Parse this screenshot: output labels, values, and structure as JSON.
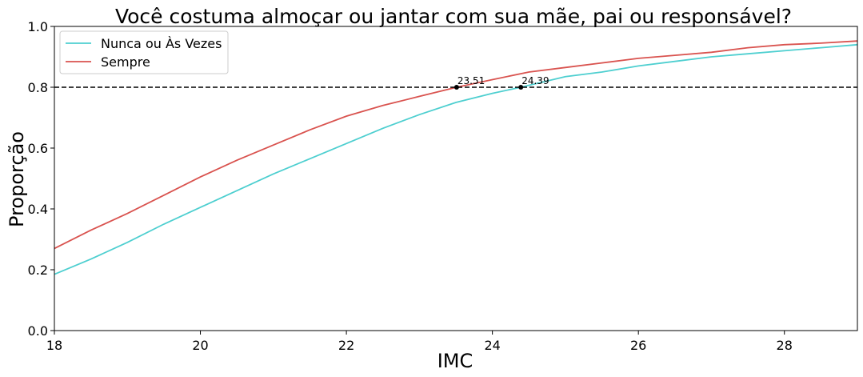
{
  "chart_data": {
    "type": "line",
    "title": "Você costuma almoçar ou jantar com sua mãe, pai ou responsável?",
    "xlabel": "IMC",
    "ylabel": "Proporção",
    "xlim": [
      18,
      29
    ],
    "ylim": [
      0,
      1
    ],
    "xticks": [
      18,
      20,
      22,
      24,
      26,
      28
    ],
    "yticks": [
      0.0,
      0.2,
      0.4,
      0.6,
      0.8,
      1.0
    ],
    "xtick_labels": [
      "18",
      "20",
      "22",
      "24",
      "26",
      "28"
    ],
    "ytick_labels": [
      "0.0",
      "0.2",
      "0.4",
      "0.6",
      "0.8",
      "1.0"
    ],
    "grid": false,
    "legend_position": "top-left",
    "hline": {
      "y": 0.8,
      "style": "dashed",
      "color": "#000000"
    },
    "series": [
      {
        "name": "Nunca ou Às Vezes",
        "color": "#4ecfd0",
        "x": [
          18.0,
          18.5,
          19.0,
          19.5,
          20.0,
          20.5,
          21.0,
          21.5,
          22.0,
          22.5,
          23.0,
          23.5,
          24.0,
          24.39,
          25.0,
          25.5,
          26.0,
          26.5,
          27.0,
          27.5,
          28.0,
          28.5,
          29.0
        ],
        "y": [
          0.185,
          0.235,
          0.29,
          0.35,
          0.405,
          0.46,
          0.515,
          0.565,
          0.615,
          0.665,
          0.71,
          0.75,
          0.78,
          0.8,
          0.835,
          0.85,
          0.87,
          0.885,
          0.9,
          0.91,
          0.92,
          0.93,
          0.94
        ]
      },
      {
        "name": "Sempre",
        "color": "#d9534f",
        "x": [
          18.0,
          18.5,
          19.0,
          19.5,
          20.0,
          20.5,
          21.0,
          21.5,
          22.0,
          22.5,
          23.0,
          23.51,
          24.0,
          24.5,
          25.0,
          25.5,
          26.0,
          26.5,
          27.0,
          27.5,
          28.0,
          28.5,
          29.0
        ],
        "y": [
          0.27,
          0.33,
          0.385,
          0.445,
          0.505,
          0.56,
          0.61,
          0.66,
          0.705,
          0.74,
          0.77,
          0.8,
          0.825,
          0.85,
          0.865,
          0.88,
          0.895,
          0.905,
          0.915,
          0.93,
          0.94,
          0.945,
          0.952
        ]
      }
    ],
    "annotations": [
      {
        "x": 23.51,
        "y": 0.8,
        "text": "23.51"
      },
      {
        "x": 24.39,
        "y": 0.8,
        "text": "24.39"
      }
    ]
  }
}
